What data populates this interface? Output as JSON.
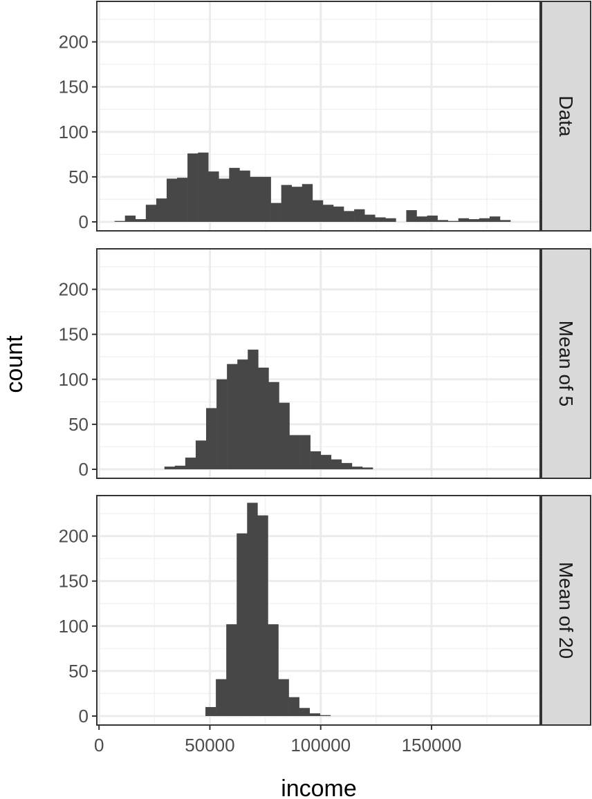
{
  "chart_data": {
    "type": "bar",
    "xlabel": "income",
    "ylabel": "count",
    "x_ticks": [
      0,
      50000,
      100000,
      150000
    ],
    "x_tick_labels": [
      "0",
      "50000",
      "100000",
      "150000"
    ],
    "xlim": [
      -1000,
      199000
    ],
    "y_ticks": [
      0,
      50,
      100,
      150,
      200
    ],
    "y_tick_labels": [
      "0",
      "50",
      "100",
      "150",
      "200"
    ],
    "ylim": [
      -10,
      245
    ],
    "bin_width": 4700,
    "grid": true,
    "bar_color": "#474747",
    "panels": [
      {
        "name": "Data",
        "bins_start": 7000,
        "values": [
          1,
          7,
          3,
          19,
          26,
          48,
          49,
          76,
          77,
          56,
          48,
          60,
          57,
          50,
          50,
          21,
          41,
          39,
          42,
          24,
          19,
          17,
          12,
          14,
          8,
          5,
          4,
          0,
          13,
          6,
          7,
          2,
          1,
          4,
          3,
          4,
          6,
          2
        ]
      },
      {
        "name": "Mean of 5",
        "bins_start": 29500,
        "values": [
          3,
          4,
          13,
          32,
          68,
          100,
          117,
          122,
          133,
          113,
          97,
          74,
          38,
          38,
          20,
          16,
          11,
          7,
          3,
          2
        ]
      },
      {
        "name": "Mean of 20",
        "bins_start": 48000,
        "values": [
          10,
          41,
          102,
          203,
          237,
          223,
          102,
          41,
          21,
          9,
          3,
          1
        ]
      }
    ]
  }
}
